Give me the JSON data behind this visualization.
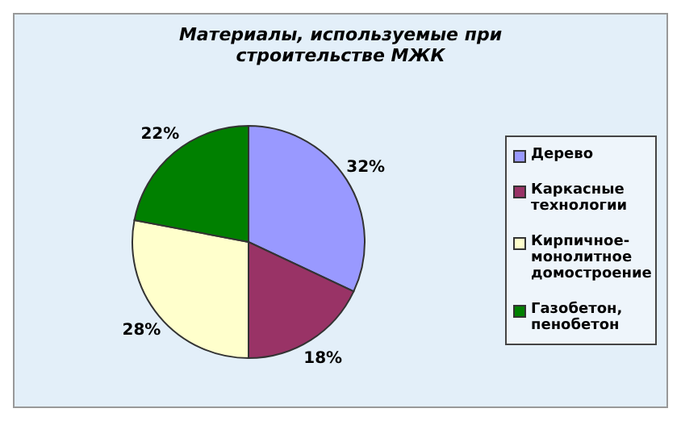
{
  "chart_data": {
    "type": "pie",
    "title": "Материалы, используемые при строительстве МЖК",
    "categories": [
      "Дерево",
      "Каркасные технологии",
      "Кирпичное-монолитное домостроение",
      "Газобетон, пенобетон"
    ],
    "values": [
      32,
      18,
      28,
      22
    ],
    "colors": [
      "#9999ff",
      "#993366",
      "#ffffcc",
      "#008000"
    ],
    "value_labels": [
      "32%",
      "18%",
      "28%",
      "22%"
    ],
    "legend": "right"
  }
}
